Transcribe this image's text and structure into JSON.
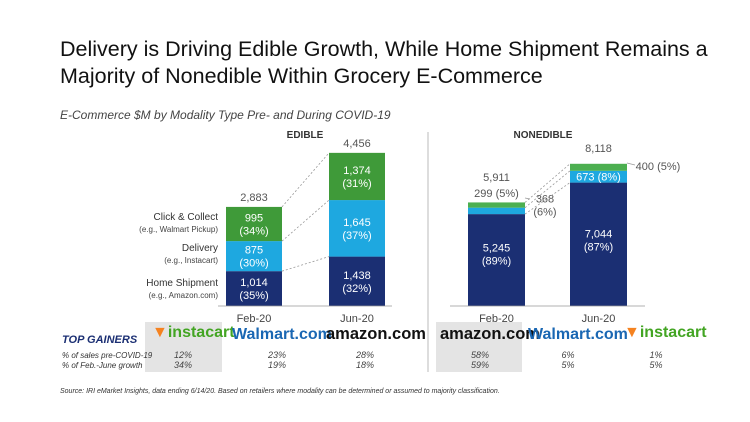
{
  "title": "Delivery is Driving Edible Growth, While Home Shipment Remains a Majority of Nonedible Within Grocery E-Commerce",
  "subtitle": "E-Commerce $M by Modality Type Pre- and During COVID-19",
  "source": "Source: IRI eMarket Insights, data ending 6/14/20. Based on retailers where modality can be determined or assumed to majority classification.",
  "colors": {
    "home_shipment": "#1b2f73",
    "delivery": "#1ea8e0",
    "click_collect": "#3f9a39",
    "nonedible_top": "#4caf50"
  },
  "chart_data": [
    {
      "type": "bar",
      "stacked": true,
      "title": "EDIBLE",
      "categories": [
        "Feb-20",
        "Jun-20"
      ],
      "totals": [
        "2,883",
        "4,456"
      ],
      "series": [
        {
          "name": "Home Shipment",
          "sublabel": "(e.g., Amazon.com)",
          "values": [
            1014,
            1438
          ],
          "labels": [
            "1,014\n(35%)",
            "1,438\n(32%)"
          ]
        },
        {
          "name": "Delivery",
          "sublabel": "(e.g., Instacart)",
          "values": [
            875,
            1645
          ],
          "labels": [
            "875\n(30%)",
            "1,645\n(37%)"
          ]
        },
        {
          "name": "Click & Collect",
          "sublabel": "(e.g., Walmart Pickup)",
          "values": [
            995,
            1374
          ],
          "labels": [
            "995\n(34%)",
            "1,374\n(31%)"
          ]
        }
      ]
    },
    {
      "type": "bar",
      "stacked": true,
      "title": "NONEDIBLE",
      "categories": [
        "Feb-20",
        "Jun-20"
      ],
      "totals": [
        "5,911",
        "8,118"
      ],
      "series": [
        {
          "name": "Home Shipment",
          "values": [
            5245,
            7044
          ],
          "labels": [
            "5,245\n(89%)",
            "7,044\n(87%)"
          ]
        },
        {
          "name": "Delivery",
          "values": [
            368,
            673
          ],
          "labels": [
            "368\n(6%)",
            "673 (8%)"
          ]
        },
        {
          "name": "Click & Collect",
          "values": [
            299,
            400
          ],
          "labels": [
            "299 (5%)",
            "400 (5%)"
          ]
        }
      ]
    }
  ],
  "gainers": {
    "heading": "TOP GAINERS",
    "row1_label": "% of sales pre-COVID-19",
    "row2_label": "% of Feb.-June growth",
    "edible": [
      {
        "brand": "instacart",
        "pre": "12%",
        "growth": "34%"
      },
      {
        "brand": "Walmart.com",
        "pre": "23%",
        "growth": "19%"
      },
      {
        "brand": "amazon.com",
        "pre": "28%",
        "growth": "18%"
      }
    ],
    "nonedible": [
      {
        "brand": "amazon.com",
        "pre": "58%",
        "growth": "59%"
      },
      {
        "brand": "Walmart.com",
        "pre": "6%",
        "growth": "5%"
      },
      {
        "brand": "instacart",
        "pre": "1%",
        "growth": "5%"
      }
    ]
  }
}
